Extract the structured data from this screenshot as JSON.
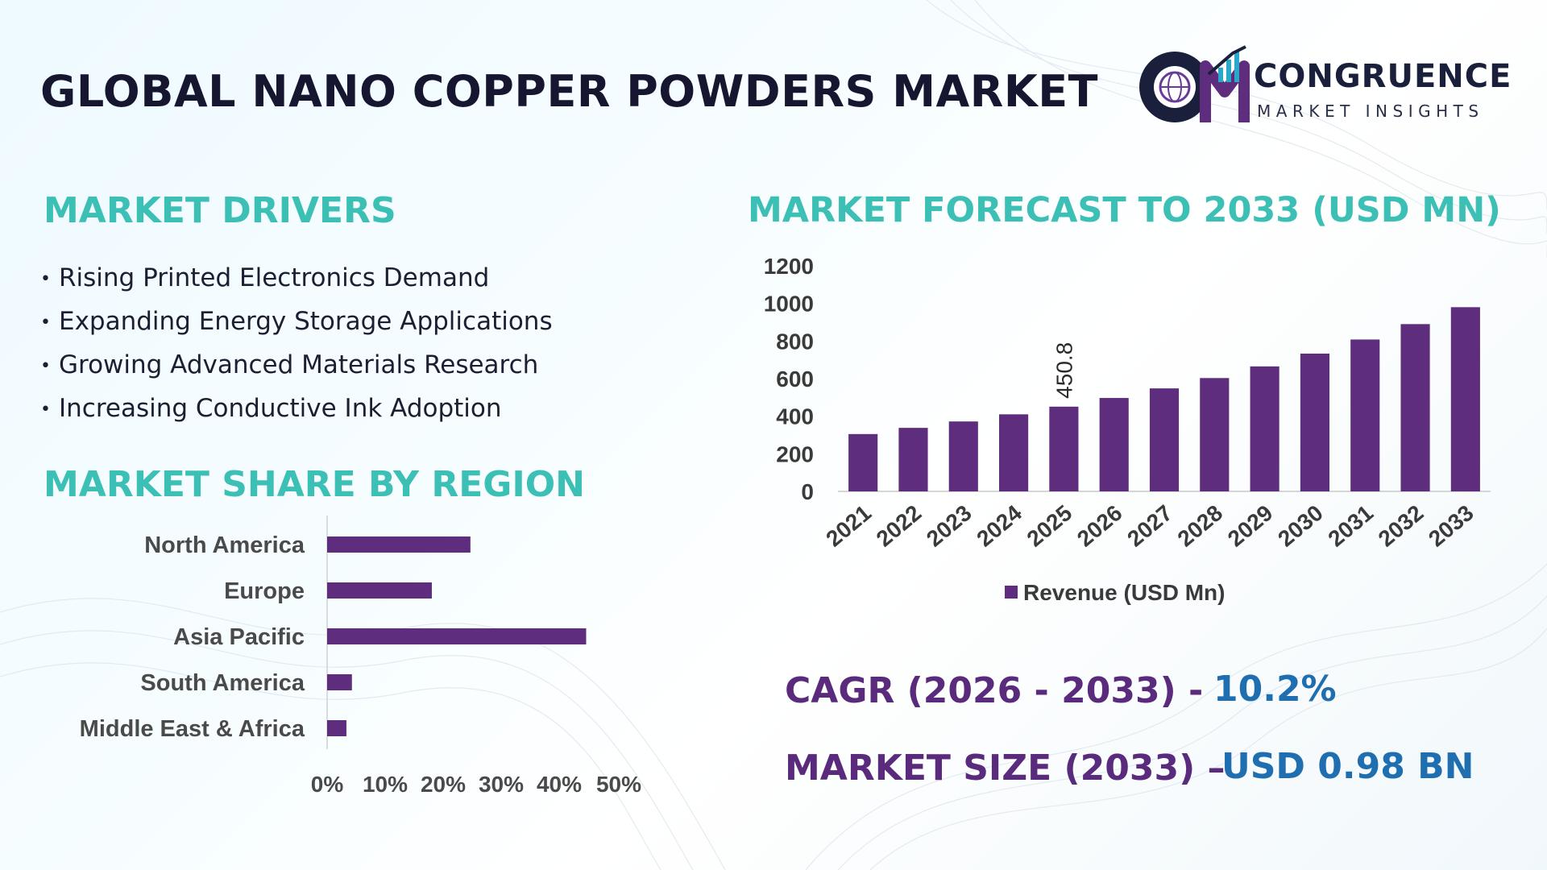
{
  "header": {
    "title": "GLOBAL NANO COPPER POWDERS MARKET",
    "logo_word1": "CONGRUENCE",
    "logo_word2": "MARKET INSIGHTS"
  },
  "drivers": {
    "title": "MARKET DRIVERS",
    "items": [
      "Rising Printed Electronics Demand",
      "Expanding Energy Storage Applications",
      "Growing Advanced Materials Research",
      "Increasing Conductive Ink Adoption"
    ]
  },
  "kpis": {
    "cagr_label": "CAGR (2026 - 2033) -",
    "cagr_value": "10.2%",
    "size_label": "MARKET SIZE (2033) –",
    "size_value": "USD 0.98 BN"
  },
  "colors": {
    "accent": "#3cbfb4",
    "bar": "#5e2d7d",
    "kpi_label": "#5a2a7c",
    "kpi_value": "#1f6fb0",
    "title": "#161630"
  },
  "chart_data": [
    {
      "type": "bar",
      "title": "MARKET FORECAST TO 2033 (USD MN)",
      "categories": [
        "2021",
        "2022",
        "2023",
        "2024",
        "2025",
        "2026",
        "2027",
        "2028",
        "2029",
        "2030",
        "2031",
        "2032",
        "2033"
      ],
      "series": [
        {
          "name": "Revenue (USD Mn)",
          "values": [
            305,
            338,
            372,
            410,
            450.8,
            497,
            548,
            603,
            665,
            733,
            808,
            890,
            980
          ]
        }
      ],
      "data_labels": [
        {
          "index": 4,
          "text": "450.8"
        }
      ],
      "ylim": [
        0,
        1200
      ],
      "yticks": [
        0,
        200,
        400,
        600,
        800,
        1000,
        1200
      ],
      "legend_placement": "bottom",
      "grid": false
    },
    {
      "type": "bar",
      "orientation": "horizontal",
      "title": "MARKET SHARE BY REGION",
      "categories": [
        "North America",
        "Europe",
        "Asia Pacific",
        "South America",
        "Middle East & Africa"
      ],
      "values": [
        26,
        19,
        47,
        4.5,
        3.5
      ],
      "xlim": [
        0,
        50
      ],
      "xticks": [
        "0%",
        "10%",
        "20%",
        "30%",
        "40%",
        "50%"
      ],
      "grid": false
    }
  ]
}
